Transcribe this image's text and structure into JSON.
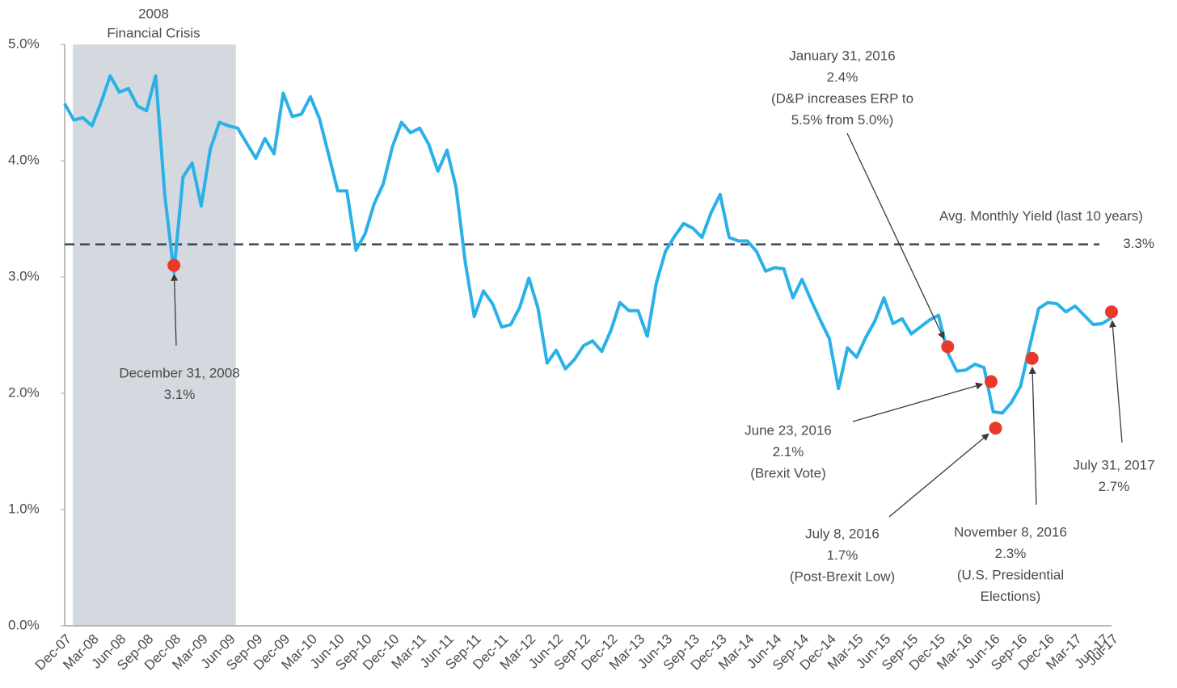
{
  "chart_data": {
    "type": "line",
    "color": "#29b1e8",
    "categories": [
      "Dec-07",
      null,
      null,
      "Mar-08",
      null,
      null,
      "Jun-08",
      null,
      null,
      "Sep-08",
      null,
      null,
      "Dec-08",
      null,
      null,
      "Mar-09",
      null,
      null,
      "Jun-09",
      null,
      null,
      "Sep-09",
      null,
      null,
      "Dec-09",
      null,
      null,
      "Mar-10",
      null,
      null,
      "Jun-10",
      null,
      null,
      "Sep-10",
      null,
      null,
      "Dec-10",
      null,
      null,
      "Mar-11",
      null,
      null,
      "Jun-11",
      null,
      null,
      "Sep-11",
      null,
      null,
      "Dec-11",
      null,
      null,
      "Mar-12",
      null,
      null,
      "Jun-12",
      null,
      null,
      "Sep-12",
      null,
      null,
      "Dec-12",
      null,
      null,
      "Mar-13",
      null,
      null,
      "Jun-13",
      null,
      null,
      "Sep-13",
      null,
      null,
      "Dec-13",
      null,
      null,
      "Mar-14",
      null,
      null,
      "Jun-14",
      null,
      null,
      "Sep-14",
      null,
      null,
      "Dec-14",
      null,
      null,
      "Mar-15",
      null,
      null,
      "Jun-15",
      null,
      null,
      "Sep-15",
      null,
      null,
      "Dec-15",
      null,
      null,
      "Mar-16",
      null,
      null,
      "Jun-16",
      null,
      null,
      "Sep-16",
      null,
      null,
      "Dec-16",
      null,
      null,
      "Mar-17",
      null,
      null,
      "Jun-17",
      "Jul-17"
    ],
    "values": [
      4.49,
      4.35,
      4.37,
      4.3,
      4.5,
      4.73,
      4.59,
      4.62,
      4.47,
      4.43,
      4.73,
      3.7,
      3.04,
      3.86,
      3.98,
      3.61,
      4.1,
      4.33,
      4.3,
      4.28,
      4.15,
      4.02,
      4.19,
      4.06,
      4.58,
      4.38,
      4.4,
      4.55,
      4.36,
      4.05,
      3.74,
      3.74,
      3.23,
      3.37,
      3.63,
      3.8,
      4.12,
      4.33,
      4.24,
      4.28,
      4.14,
      3.91,
      4.09,
      3.77,
      3.13,
      2.66,
      2.88,
      2.77,
      2.57,
      2.59,
      2.74,
      2.99,
      2.73,
      2.26,
      2.37,
      2.21,
      2.29,
      2.41,
      2.45,
      2.36,
      2.54,
      2.78,
      2.71,
      2.71,
      2.49,
      2.95,
      3.22,
      3.35,
      3.46,
      3.42,
      3.34,
      3.55,
      3.71,
      3.34,
      3.31,
      3.31,
      3.22,
      3.05,
      3.08,
      3.07,
      2.82,
      2.98,
      2.8,
      2.63,
      2.47,
      2.04,
      2.39,
      2.31,
      2.48,
      2.62,
      2.82,
      2.6,
      2.64,
      2.51,
      2.57,
      2.63,
      2.67,
      2.35,
      2.19,
      2.2,
      2.25,
      2.22,
      1.84,
      1.83,
      1.92,
      2.06,
      2.4,
      2.73,
      2.78,
      2.77,
      2.7,
      2.75,
      2.67,
      2.59,
      2.6,
      2.65
    ],
    "ylim": [
      0,
      5
    ],
    "yticks": [
      {
        "value": 0,
        "label": "0.0%"
      },
      {
        "value": 1,
        "label": "1.0%"
      },
      {
        "value": 2,
        "label": "2.0%"
      },
      {
        "value": 3,
        "label": "3.0%"
      },
      {
        "value": 4,
        "label": "4.0%"
      },
      {
        "value": 5,
        "label": "5.0%"
      }
    ],
    "shaded_period": {
      "label": [
        "2008",
        "Financial Crisis"
      ],
      "color": "#d4d9df"
    },
    "average": {
      "label": "Avg. Monthly Yield (last 10 years)",
      "value": 3.28,
      "value_label": "3.3%",
      "color": "#3d4a5a"
    },
    "marker_color": "#e8392b",
    "annotations": [
      {
        "date": "December 31, 2008",
        "value": 3.1,
        "value_label": "3.1%"
      },
      {
        "date": "January 31, 2016",
        "value": 2.4,
        "value_label": "2.4%",
        "text": [
          "(D&P increases ERP to",
          "5.5% from 5.0%)"
        ]
      },
      {
        "date": "June 23, 2016",
        "value": 2.1,
        "value_label": "2.1%",
        "text": [
          "(Brexit Vote)"
        ]
      },
      {
        "date": "July 8, 2016",
        "value": 1.7,
        "value_label": "1.7%",
        "text": [
          "(Post-Brexit Low)"
        ]
      },
      {
        "date": "November 8, 2016",
        "value": 2.3,
        "value_label": "2.3%",
        "text": [
          "(U.S. Presidential",
          "Elections)"
        ]
      },
      {
        "date": "July 31, 2017",
        "value": 2.7,
        "value_label": "2.7%"
      }
    ]
  }
}
